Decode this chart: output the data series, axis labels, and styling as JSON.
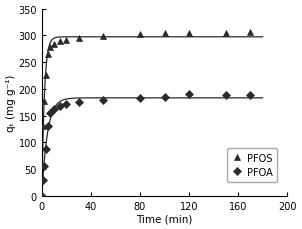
{
  "title": "",
  "xlabel": "Time (min)",
  "ylabel": "qₜ (mg g⁻¹)",
  "xlim": [
    0,
    200
  ],
  "ylim": [
    0,
    350
  ],
  "xticks": [
    0,
    40,
    80,
    120,
    160,
    200
  ],
  "yticks": [
    0,
    50,
    100,
    150,
    200,
    250,
    300,
    350
  ],
  "pfos_time": [
    0,
    1,
    2,
    3,
    5,
    7,
    10,
    15,
    20,
    30,
    50,
    80,
    100,
    120,
    150,
    170
  ],
  "pfos_qt": [
    0,
    130,
    178,
    225,
    265,
    278,
    284,
    289,
    292,
    295,
    298,
    302,
    304,
    305,
    305,
    306
  ],
  "pfoa_time": [
    0,
    1,
    2,
    3,
    5,
    7,
    10,
    15,
    20,
    30,
    50,
    80,
    100,
    120,
    150,
    170
  ],
  "pfoa_qt": [
    0,
    30,
    55,
    88,
    130,
    155,
    163,
    168,
    172,
    176,
    180,
    183,
    185,
    190,
    188,
    189
  ],
  "line_color": "#2a2a2a",
  "marker_pfos": "^",
  "marker_pfoa": "D",
  "marker_size_pfos": 4.5,
  "marker_size_pfoa": 4,
  "legend_pfos": "PFOS",
  "legend_pfoa": "PFOA",
  "figsize": [
    3.02,
    2.3
  ],
  "dpi": 100
}
